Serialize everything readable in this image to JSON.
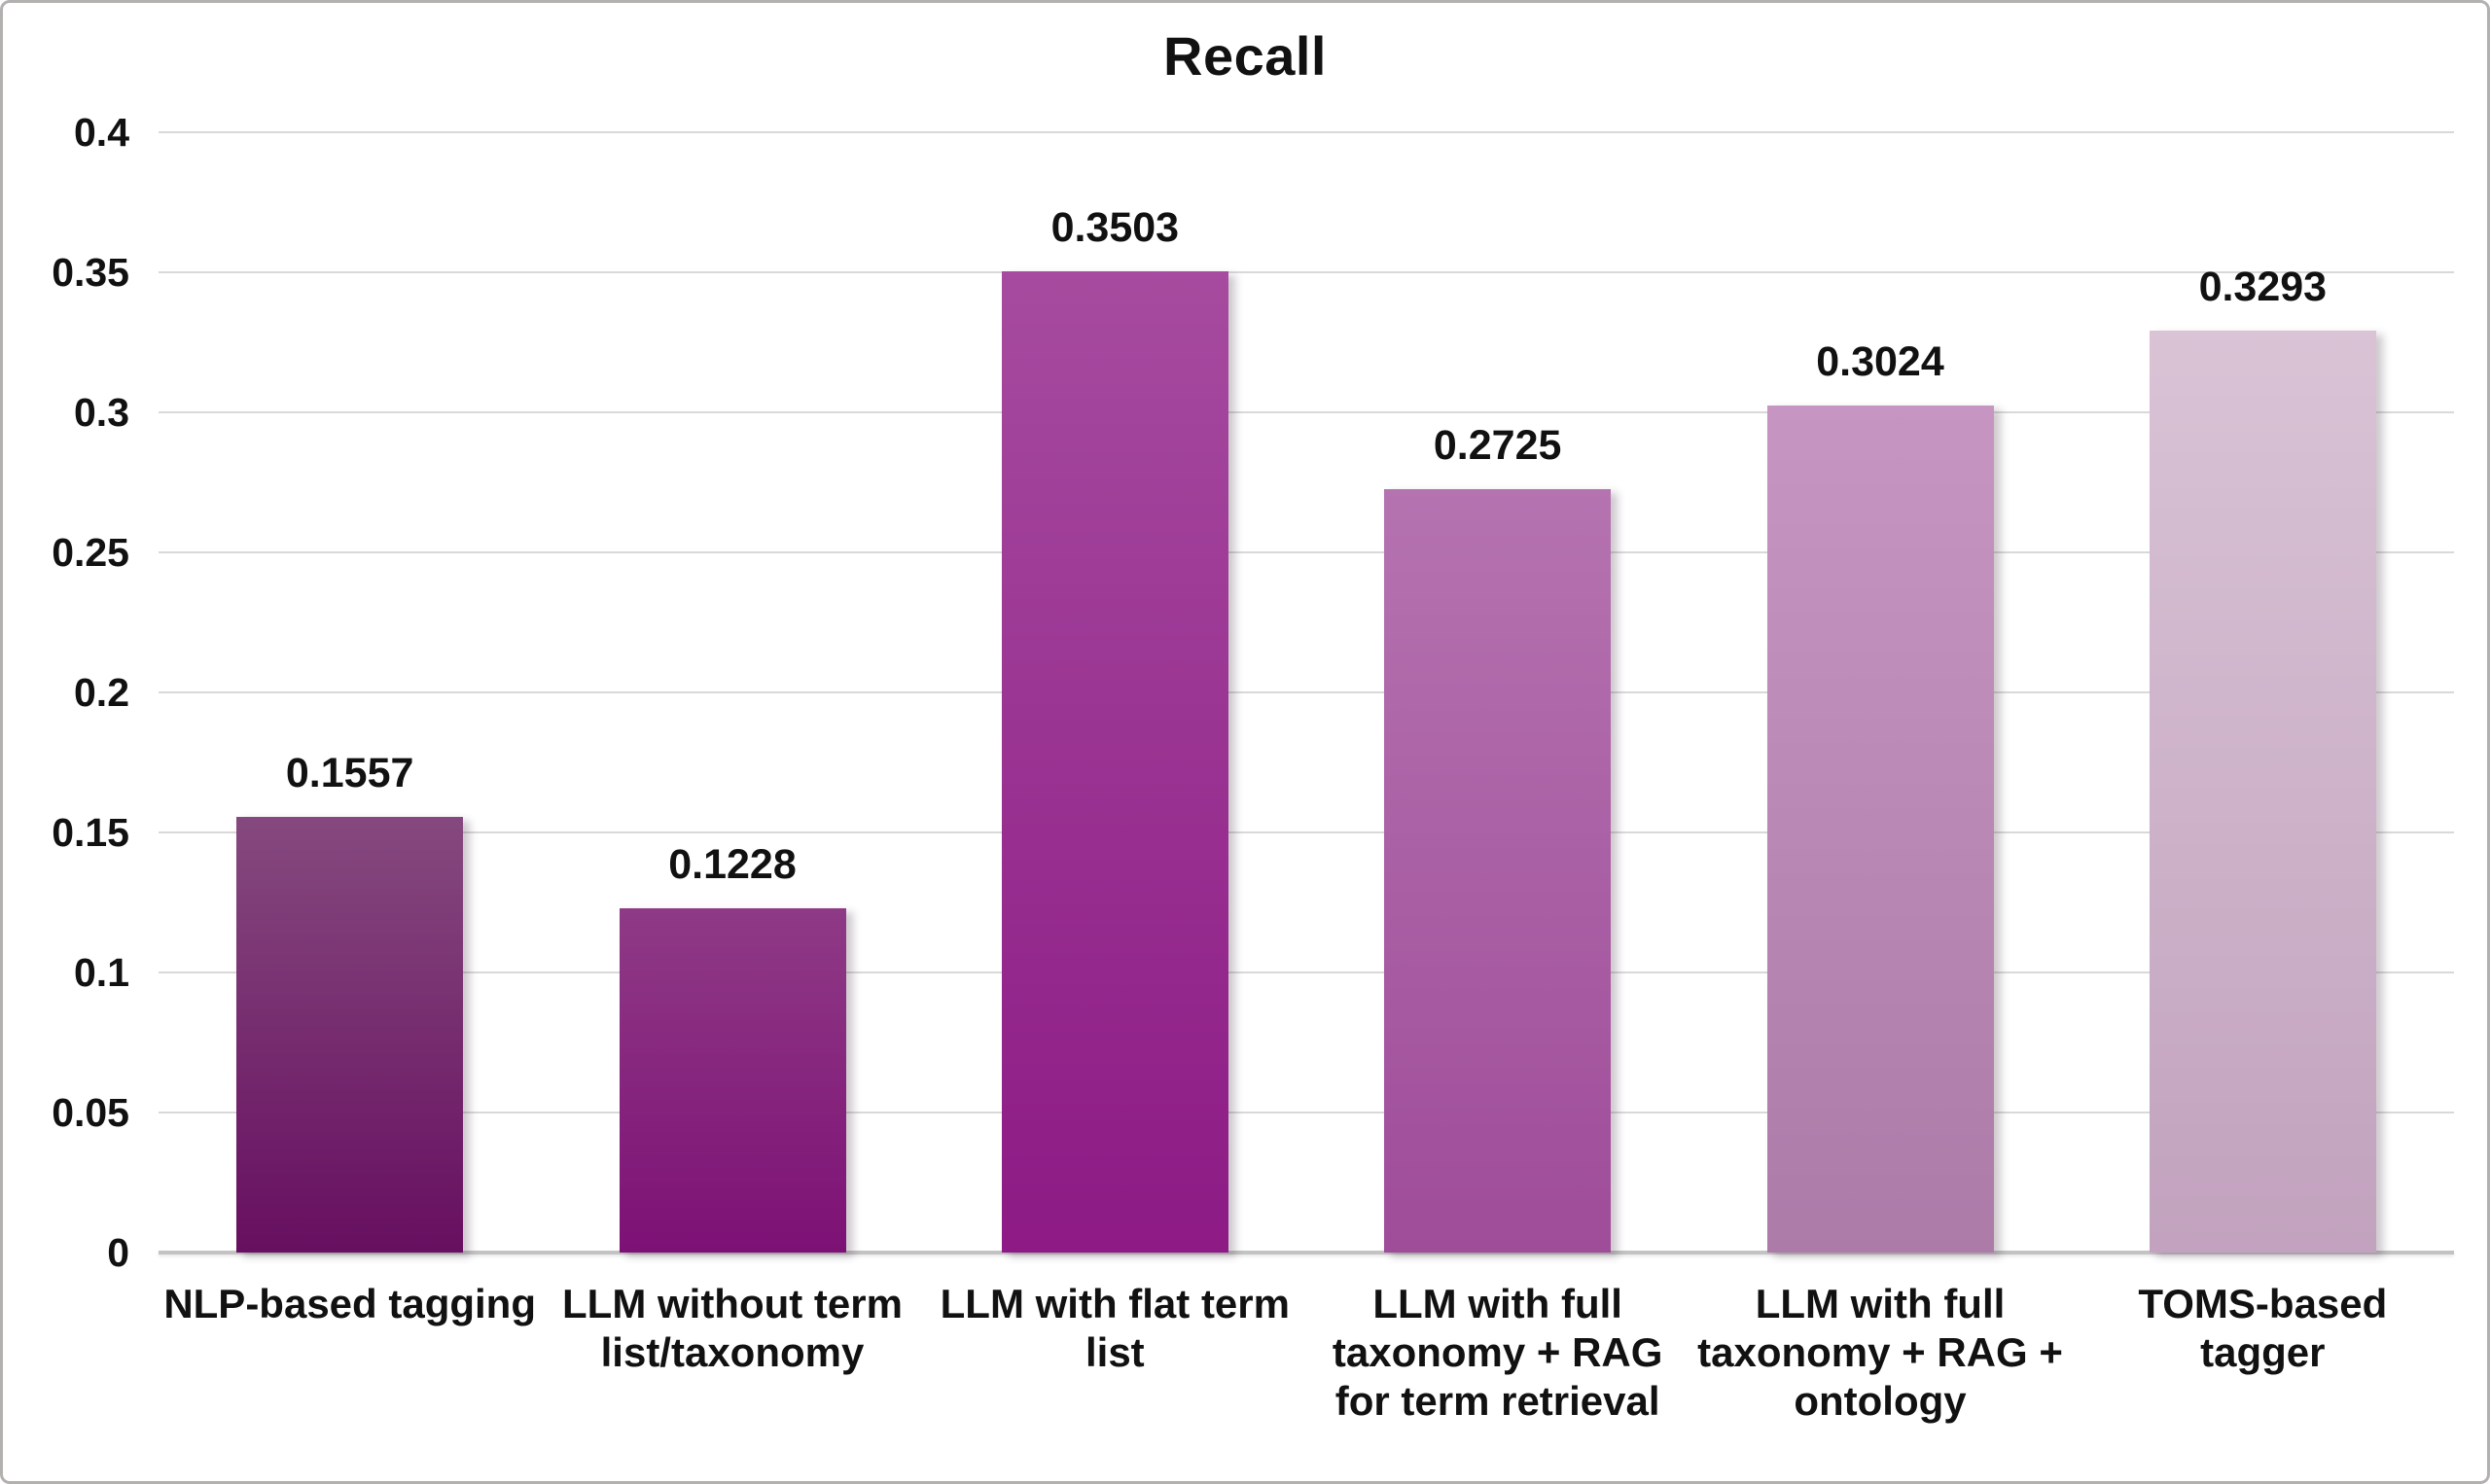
{
  "chart_data": {
    "type": "bar",
    "title": "Recall",
    "xlabel": "",
    "ylabel": "",
    "categories": [
      "NLP-based tagging",
      "LLM without term\nlist/taxonomy",
      "LLM with flat term\nlist",
      "LLM with full\ntaxonomy + RAG\nfor term retrieval",
      "LLM with full\ntaxonomy + RAG +\nontology",
      "TOMS-based\ntagger"
    ],
    "values": [
      0.1557,
      0.1228,
      0.3503,
      0.2725,
      0.3024,
      0.3293
    ],
    "value_labels": [
      "0.1557",
      "0.1228",
      "0.3503",
      "0.2725",
      "0.3024",
      "0.3293"
    ],
    "ylim": [
      0,
      0.4
    ],
    "ytick_values": [
      0,
      0.05,
      0.1,
      0.15,
      0.2,
      0.25,
      0.3,
      0.35,
      0.4
    ],
    "ytick_labels": [
      "0",
      "0.05",
      "0.1",
      "0.15",
      "0.2",
      "0.25",
      "0.3",
      "0.35",
      "0.4"
    ],
    "grid": true,
    "legend_position": "none",
    "bar_colors": [
      {
        "top": "#85497e",
        "bottom": "#670f60"
      },
      {
        "top": "#8f3a86",
        "bottom": "#7d1175"
      },
      {
        "top": "#a64b9f",
        "bottom": "#8d1a85"
      },
      {
        "top": "#b573b0",
        "bottom": "#9f4c99"
      },
      {
        "top": "#c795c1",
        "bottom": "#ad7ba8"
      },
      {
        "top": "#d9c3d5",
        "bottom": "#c2a2be"
      }
    ],
    "colors": {
      "background": "#ffffff",
      "border": "#b3b0b0",
      "grid": "#d9d9d9",
      "axis_line": "#c3c3c3",
      "text": "#111111"
    }
  }
}
